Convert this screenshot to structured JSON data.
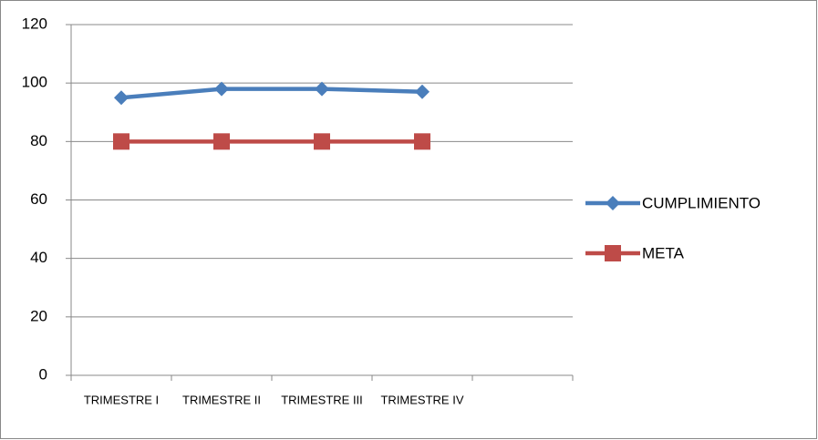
{
  "chart_data": {
    "type": "line",
    "categories": [
      "TRIMESTRE I",
      "TRIMESTRE II",
      "TRIMESTRE III",
      "TRIMESTRE IV",
      null
    ],
    "series": [
      {
        "name": "CUMPLIMIENTO",
        "color": "#4a7ebb",
        "marker": "diamond",
        "values": [
          95,
          98,
          98,
          97,
          null
        ]
      },
      {
        "name": "META",
        "color": "#be4b48",
        "marker": "square",
        "values": [
          80,
          80,
          80,
          80,
          null
        ]
      }
    ],
    "ylim": [
      0,
      120
    ],
    "yticks": [
      0,
      20,
      40,
      60,
      80,
      100,
      120
    ],
    "grid": true,
    "legend": "right"
  }
}
